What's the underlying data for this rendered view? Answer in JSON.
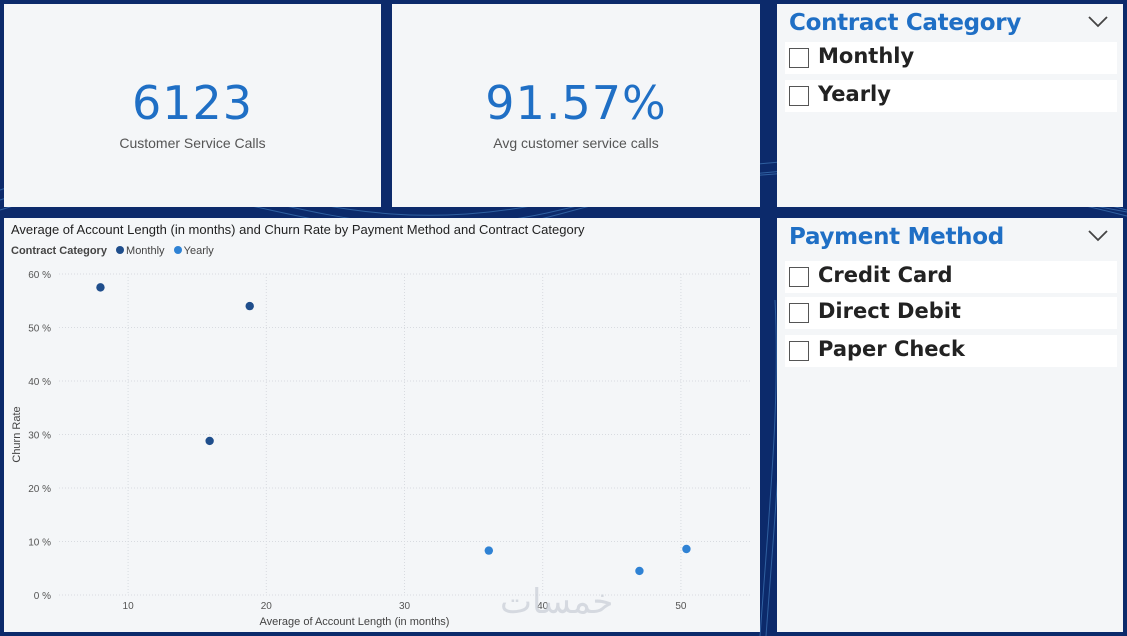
{
  "kpis": [
    {
      "value": "6123",
      "label": "Customer Service Calls"
    },
    {
      "value": "91.57%",
      "label": "Avg customer service calls"
    }
  ],
  "contract_slicer": {
    "title": "Contract Category",
    "options": [
      "Monthly",
      "Yearly"
    ]
  },
  "payment_slicer": {
    "title": "Payment Method",
    "options": [
      "Credit Card",
      "Direct Debit",
      "Paper Check"
    ]
  },
  "watermark": "خمسات",
  "chart_data": {
    "type": "scatter",
    "title": "Average of Account Length (in months) and Churn Rate by Payment Method and Contract Category",
    "xlabel": "Average of Account Length (in months)",
    "ylabel": "Churn Rate",
    "legend_title": "Contract Category",
    "legend_position": "top-left",
    "xlim": [
      5,
      55
    ],
    "ylim": [
      0,
      60
    ],
    "x_ticks": [
      10,
      20,
      30,
      40,
      50
    ],
    "y_ticks": [
      0,
      10,
      20,
      30,
      40,
      50,
      60
    ],
    "y_tick_labels": [
      "0 %",
      "10 %",
      "20 %",
      "30 %",
      "40 %",
      "50 %",
      "60 %"
    ],
    "grid": true,
    "series": [
      {
        "name": "Monthly",
        "color": "#1f4e8c",
        "points": [
          [
            8.0,
            57.5
          ],
          [
            15.9,
            28.8
          ],
          [
            18.8,
            54.0
          ]
        ]
      },
      {
        "name": "Yearly",
        "color": "#2f82d4",
        "points": [
          [
            36.1,
            8.3
          ],
          [
            47.0,
            4.5
          ],
          [
            50.4,
            8.6
          ]
        ]
      }
    ]
  }
}
